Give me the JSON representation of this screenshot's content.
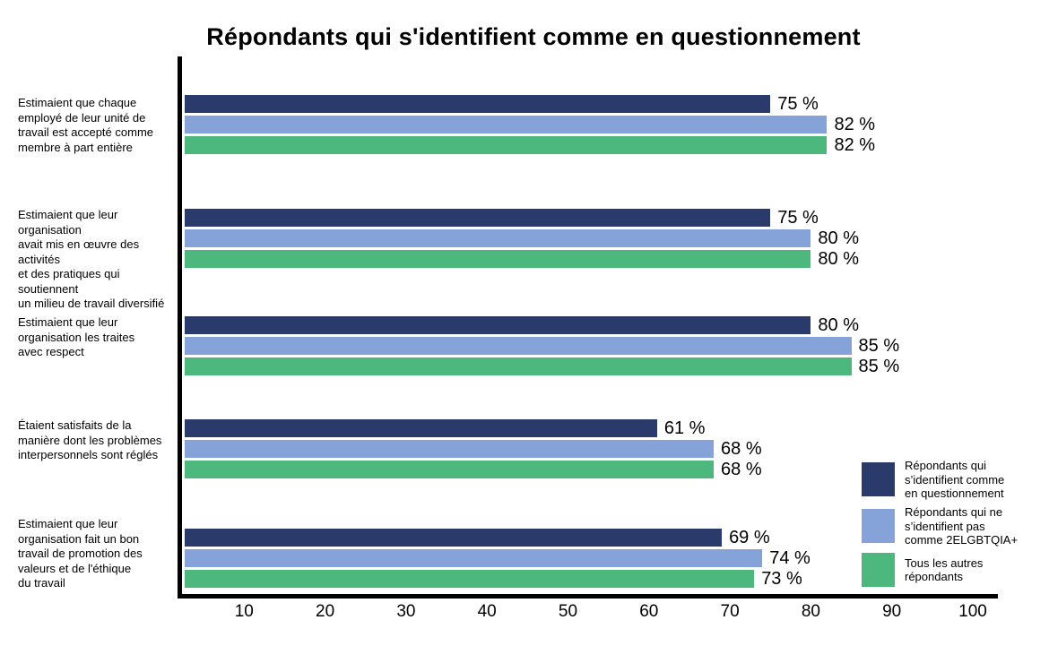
{
  "chart_data": {
    "type": "bar",
    "orientation": "horizontal",
    "title": "Répondants qui s'identifient comme en questionnement",
    "value_suffix": " %",
    "xlabel": "",
    "ylabel": "",
    "xlim": [
      0,
      103
    ],
    "grid": false,
    "legend_position": "lower right",
    "xticks": [
      10,
      20,
      30,
      40,
      50,
      60,
      70,
      80,
      90,
      100
    ],
    "categories": [
      "Estimaient que chaque\nemployé de leur unité de\ntravail est accepté comme\nmembre à part entière",
      "Estimaient que leur organisation\navait mis en œuvre des activités\net des pratiques qui soutiennent\nun milieu de travail diversifié",
      "Estimaient que leur\norganisation les traites\navec respect",
      "Étaient satisfaits de la\nmanière dont les problèmes\ninterpersonnels sont réglés",
      "Estimaient que leur\norganisation fait un bon\ntravail de promotion des\nvaleurs et de l'éthique\ndu travail"
    ],
    "series": [
      {
        "name": "Répondants qui s’identifient comme en questionnement",
        "color": "#2A3A6B",
        "values": [
          75,
          75,
          80,
          61,
          69
        ]
      },
      {
        "name": "Répondants qui ne s’identifient pas comme 2ELGBTQIA+",
        "color": "#85A3D8",
        "values": [
          82,
          80,
          85,
          68,
          74
        ]
      },
      {
        "name": "Tous les autres répondants",
        "color": "#4DB87E",
        "values": [
          82,
          80,
          85,
          68,
          73
        ]
      }
    ]
  },
  "legend": {
    "items": [
      {
        "label": "Répondants qui\ns’identifient comme\nen questionnement",
        "color": "#2A3A6B"
      },
      {
        "label": "Répondants qui ne\ns’identifient pas\ncomme 2ELGBTQIA+",
        "color": "#85A3D8"
      },
      {
        "label": "Tous les autres\nrépondants",
        "color": "#4DB87E"
      }
    ]
  }
}
